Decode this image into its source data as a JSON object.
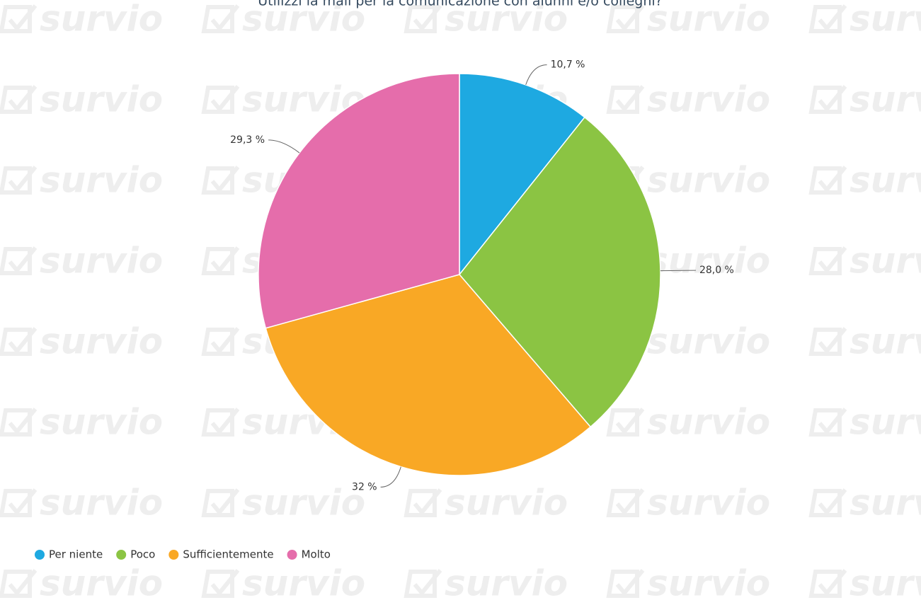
{
  "chart_data": {
    "type": "pie",
    "title": "Utilizzi la mail per la comunicazione con alunni e/o colleghi?",
    "watermark": "survio",
    "categories": [
      "Per niente",
      "Poco",
      "Sufficientemente",
      "Molto"
    ],
    "values": [
      10.7,
      28.0,
      32,
      29.3
    ],
    "value_labels": [
      "10,7 %",
      "28,0 %",
      "32 %",
      "29,3 %"
    ],
    "colors": [
      "#1ea9e1",
      "#8bc443",
      "#f9a825",
      "#e56dab"
    ],
    "legend": "bottom-left"
  }
}
